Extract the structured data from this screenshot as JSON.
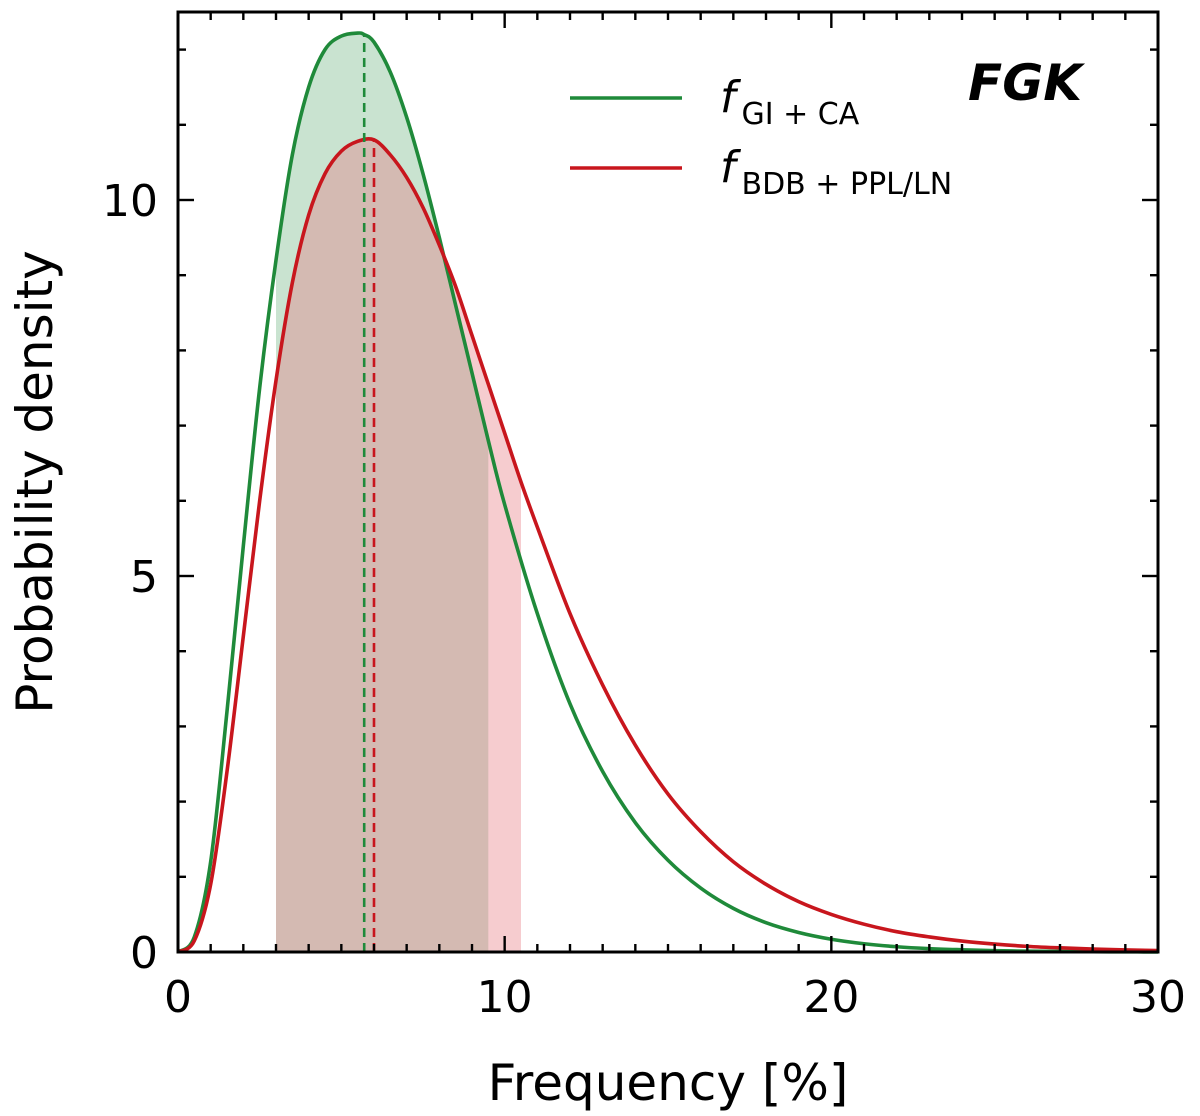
{
  "chart_data": {
    "type": "line",
    "title": "",
    "annotation": "FGK",
    "xlabel": "Frequency [%]",
    "ylabel": "Probability density",
    "xlim": [
      0,
      30
    ],
    "ylim": [
      0,
      12.5
    ],
    "xticks": [
      0,
      10,
      20,
      30
    ],
    "yticks": [
      0,
      5,
      10
    ],
    "x_minor_step": 1,
    "y_minor_step": 1,
    "grid": false,
    "legend_position": "top-right",
    "series": [
      {
        "name": "f_GI+CA",
        "legend_main": "f",
        "legend_sub": "GI + CA",
        "color": "#1f8a3a",
        "fill_color": "#1f8a3a",
        "mode": 5.7,
        "peak": 12.2,
        "interval": [
          3.0,
          9.5
        ],
        "x": [
          0,
          0.5,
          1,
          1.5,
          2,
          2.5,
          3,
          3.5,
          4,
          4.5,
          5,
          5.5,
          5.7,
          6,
          6.5,
          7,
          7.5,
          8,
          8.5,
          9,
          9.5,
          10,
          11,
          12,
          13,
          14,
          15,
          16,
          17,
          18,
          19,
          20,
          21,
          22,
          23,
          24,
          25,
          26,
          27,
          28,
          29,
          30
        ],
        "y": [
          0,
          0.2,
          1.2,
          3.2,
          5.4,
          7.5,
          9.2,
          10.6,
          11.5,
          12.0,
          12.18,
          12.22,
          12.2,
          12.1,
          11.7,
          11.1,
          10.35,
          9.5,
          8.6,
          7.7,
          6.8,
          5.95,
          4.5,
          3.3,
          2.4,
          1.72,
          1.22,
          0.85,
          0.58,
          0.39,
          0.26,
          0.17,
          0.11,
          0.07,
          0.045,
          0.03,
          0.018,
          0.011,
          0.007,
          0.004,
          0.002,
          0.001
        ]
      },
      {
        "name": "f_BDB+PPL/LN",
        "legend_main": "f",
        "legend_sub": "BDB + PPL/LN",
        "color": "#c8161d",
        "fill_color": "#e87a82",
        "mode": 6.0,
        "peak": 10.8,
        "interval": [
          3.0,
          10.5
        ],
        "x": [
          0,
          0.5,
          1,
          1.5,
          2,
          2.5,
          3,
          3.5,
          4,
          4.5,
          5,
          5.5,
          6,
          6.5,
          7,
          7.5,
          8,
          8.5,
          9,
          9.5,
          10,
          10.5,
          11,
          12,
          13,
          14,
          15,
          16,
          17,
          18,
          19,
          20,
          21,
          22,
          23,
          24,
          25,
          26,
          27,
          28,
          29,
          30
        ],
        "y": [
          0,
          0.15,
          0.9,
          2.4,
          4.2,
          6.0,
          7.6,
          8.9,
          9.8,
          10.35,
          10.65,
          10.78,
          10.8,
          10.6,
          10.3,
          9.9,
          9.4,
          8.85,
          8.2,
          7.55,
          6.9,
          6.25,
          5.65,
          4.5,
          3.55,
          2.75,
          2.1,
          1.6,
          1.2,
          0.9,
          0.67,
          0.5,
          0.37,
          0.27,
          0.2,
          0.145,
          0.105,
          0.075,
          0.055,
          0.04,
          0.028,
          0.02
        ]
      }
    ]
  }
}
